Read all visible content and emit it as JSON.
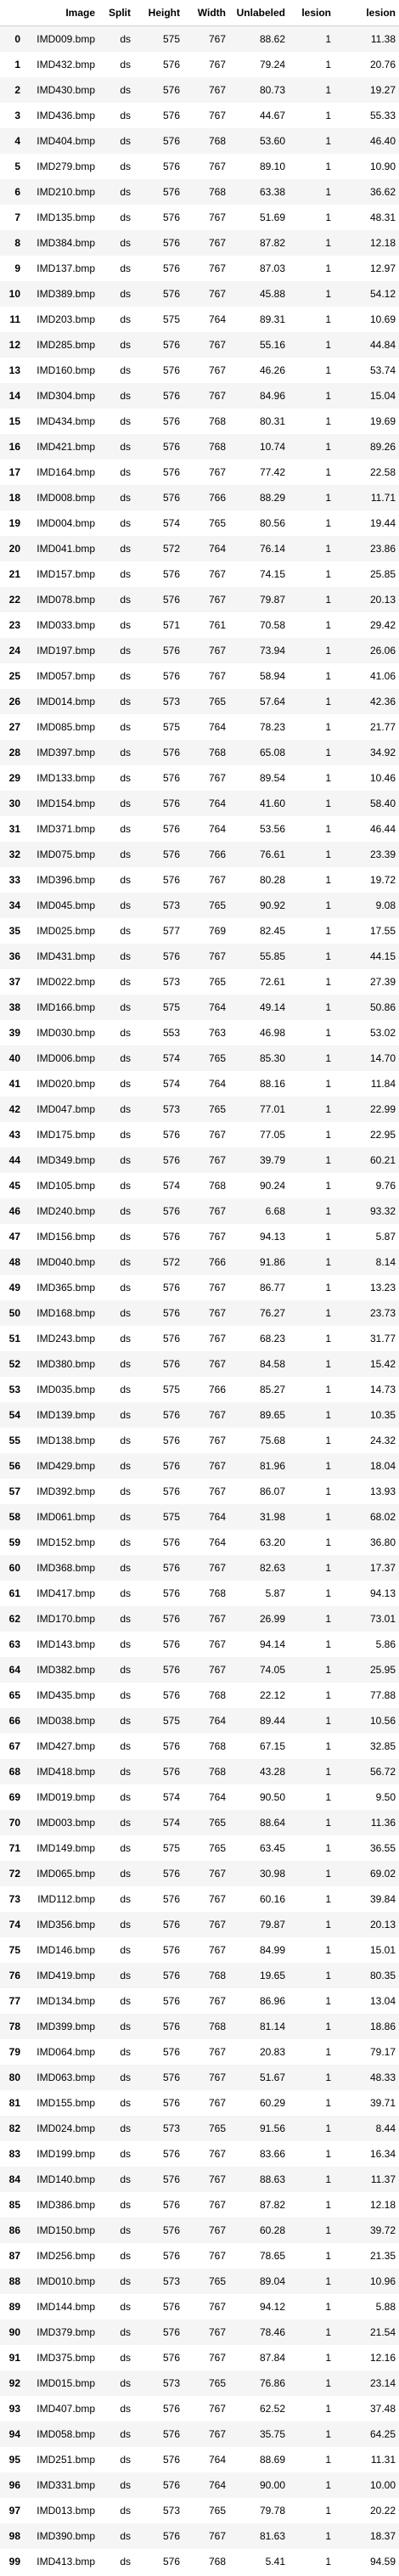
{
  "table": {
    "columns": [
      "",
      "Image",
      "Split",
      "Height",
      "Width",
      "Unlabeled",
      "lesion",
      "lesion"
    ],
    "rows": [
      [
        "0",
        "IMD009.bmp",
        "ds",
        "575",
        "767",
        "88.62",
        "1",
        "11.38"
      ],
      [
        "1",
        "IMD432.bmp",
        "ds",
        "576",
        "767",
        "79.24",
        "1",
        "20.76"
      ],
      [
        "2",
        "IMD430.bmp",
        "ds",
        "576",
        "767",
        "80.73",
        "1",
        "19.27"
      ],
      [
        "3",
        "IMD436.bmp",
        "ds",
        "576",
        "767",
        "44.67",
        "1",
        "55.33"
      ],
      [
        "4",
        "IMD404.bmp",
        "ds",
        "576",
        "768",
        "53.60",
        "1",
        "46.40"
      ],
      [
        "5",
        "IMD279.bmp",
        "ds",
        "576",
        "767",
        "89.10",
        "1",
        "10.90"
      ],
      [
        "6",
        "IMD210.bmp",
        "ds",
        "576",
        "768",
        "63.38",
        "1",
        "36.62"
      ],
      [
        "7",
        "IMD135.bmp",
        "ds",
        "576",
        "767",
        "51.69",
        "1",
        "48.31"
      ],
      [
        "8",
        "IMD384.bmp",
        "ds",
        "576",
        "767",
        "87.82",
        "1",
        "12.18"
      ],
      [
        "9",
        "IMD137.bmp",
        "ds",
        "576",
        "767",
        "87.03",
        "1",
        "12.97"
      ],
      [
        "10",
        "IMD389.bmp",
        "ds",
        "576",
        "767",
        "45.88",
        "1",
        "54.12"
      ],
      [
        "11",
        "IMD203.bmp",
        "ds",
        "575",
        "764",
        "89.31",
        "1",
        "10.69"
      ],
      [
        "12",
        "IMD285.bmp",
        "ds",
        "576",
        "767",
        "55.16",
        "1",
        "44.84"
      ],
      [
        "13",
        "IMD160.bmp",
        "ds",
        "576",
        "767",
        "46.26",
        "1",
        "53.74"
      ],
      [
        "14",
        "IMD304.bmp",
        "ds",
        "576",
        "767",
        "84.96",
        "1",
        "15.04"
      ],
      [
        "15",
        "IMD434.bmp",
        "ds",
        "576",
        "768",
        "80.31",
        "1",
        "19.69"
      ],
      [
        "16",
        "IMD421.bmp",
        "ds",
        "576",
        "768",
        "10.74",
        "1",
        "89.26"
      ],
      [
        "17",
        "IMD164.bmp",
        "ds",
        "576",
        "767",
        "77.42",
        "1",
        "22.58"
      ],
      [
        "18",
        "IMD008.bmp",
        "ds",
        "576",
        "766",
        "88.29",
        "1",
        "11.71"
      ],
      [
        "19",
        "IMD004.bmp",
        "ds",
        "574",
        "765",
        "80.56",
        "1",
        "19.44"
      ],
      [
        "20",
        "IMD041.bmp",
        "ds",
        "572",
        "764",
        "76.14",
        "1",
        "23.86"
      ],
      [
        "21",
        "IMD157.bmp",
        "ds",
        "576",
        "767",
        "74.15",
        "1",
        "25.85"
      ],
      [
        "22",
        "IMD078.bmp",
        "ds",
        "576",
        "767",
        "79.87",
        "1",
        "20.13"
      ],
      [
        "23",
        "IMD033.bmp",
        "ds",
        "571",
        "761",
        "70.58",
        "1",
        "29.42"
      ],
      [
        "24",
        "IMD197.bmp",
        "ds",
        "576",
        "767",
        "73.94",
        "1",
        "26.06"
      ],
      [
        "25",
        "IMD057.bmp",
        "ds",
        "576",
        "767",
        "58.94",
        "1",
        "41.06"
      ],
      [
        "26",
        "IMD014.bmp",
        "ds",
        "573",
        "765",
        "57.64",
        "1",
        "42.36"
      ],
      [
        "27",
        "IMD085.bmp",
        "ds",
        "575",
        "764",
        "78.23",
        "1",
        "21.77"
      ],
      [
        "28",
        "IMD397.bmp",
        "ds",
        "576",
        "768",
        "65.08",
        "1",
        "34.92"
      ],
      [
        "29",
        "IMD133.bmp",
        "ds",
        "576",
        "767",
        "89.54",
        "1",
        "10.46"
      ],
      [
        "30",
        "IMD154.bmp",
        "ds",
        "576",
        "764",
        "41.60",
        "1",
        "58.40"
      ],
      [
        "31",
        "IMD371.bmp",
        "ds",
        "576",
        "764",
        "53.56",
        "1",
        "46.44"
      ],
      [
        "32",
        "IMD075.bmp",
        "ds",
        "576",
        "766",
        "76.61",
        "1",
        "23.39"
      ],
      [
        "33",
        "IMD396.bmp",
        "ds",
        "576",
        "767",
        "80.28",
        "1",
        "19.72"
      ],
      [
        "34",
        "IMD045.bmp",
        "ds",
        "573",
        "765",
        "90.92",
        "1",
        "9.08"
      ],
      [
        "35",
        "IMD025.bmp",
        "ds",
        "577",
        "769",
        "82.45",
        "1",
        "17.55"
      ],
      [
        "36",
        "IMD431.bmp",
        "ds",
        "576",
        "767",
        "55.85",
        "1",
        "44.15"
      ],
      [
        "37",
        "IMD022.bmp",
        "ds",
        "573",
        "765",
        "72.61",
        "1",
        "27.39"
      ],
      [
        "38",
        "IMD166.bmp",
        "ds",
        "575",
        "764",
        "49.14",
        "1",
        "50.86"
      ],
      [
        "39",
        "IMD030.bmp",
        "ds",
        "553",
        "763",
        "46.98",
        "1",
        "53.02"
      ],
      [
        "40",
        "IMD006.bmp",
        "ds",
        "574",
        "765",
        "85.30",
        "1",
        "14.70"
      ],
      [
        "41",
        "IMD020.bmp",
        "ds",
        "574",
        "764",
        "88.16",
        "1",
        "11.84"
      ],
      [
        "42",
        "IMD047.bmp",
        "ds",
        "573",
        "765",
        "77.01",
        "1",
        "22.99"
      ],
      [
        "43",
        "IMD175.bmp",
        "ds",
        "576",
        "767",
        "77.05",
        "1",
        "22.95"
      ],
      [
        "44",
        "IMD349.bmp",
        "ds",
        "576",
        "767",
        "39.79",
        "1",
        "60.21"
      ],
      [
        "45",
        "IMD105.bmp",
        "ds",
        "574",
        "768",
        "90.24",
        "1",
        "9.76"
      ],
      [
        "46",
        "IMD240.bmp",
        "ds",
        "576",
        "767",
        "6.68",
        "1",
        "93.32"
      ],
      [
        "47",
        "IMD156.bmp",
        "ds",
        "576",
        "767",
        "94.13",
        "1",
        "5.87"
      ],
      [
        "48",
        "IMD040.bmp",
        "ds",
        "572",
        "766",
        "91.86",
        "1",
        "8.14"
      ],
      [
        "49",
        "IMD365.bmp",
        "ds",
        "576",
        "767",
        "86.77",
        "1",
        "13.23"
      ],
      [
        "50",
        "IMD168.bmp",
        "ds",
        "576",
        "767",
        "76.27",
        "1",
        "23.73"
      ],
      [
        "51",
        "IMD243.bmp",
        "ds",
        "576",
        "767",
        "68.23",
        "1",
        "31.77"
      ],
      [
        "52",
        "IMD380.bmp",
        "ds",
        "576",
        "767",
        "84.58",
        "1",
        "15.42"
      ],
      [
        "53",
        "IMD035.bmp",
        "ds",
        "575",
        "766",
        "85.27",
        "1",
        "14.73"
      ],
      [
        "54",
        "IMD139.bmp",
        "ds",
        "576",
        "767",
        "89.65",
        "1",
        "10.35"
      ],
      [
        "55",
        "IMD138.bmp",
        "ds",
        "576",
        "767",
        "75.68",
        "1",
        "24.32"
      ],
      [
        "56",
        "IMD429.bmp",
        "ds",
        "576",
        "767",
        "81.96",
        "1",
        "18.04"
      ],
      [
        "57",
        "IMD392.bmp",
        "ds",
        "576",
        "767",
        "86.07",
        "1",
        "13.93"
      ],
      [
        "58",
        "IMD061.bmp",
        "ds",
        "575",
        "764",
        "31.98",
        "1",
        "68.02"
      ],
      [
        "59",
        "IMD152.bmp",
        "ds",
        "576",
        "764",
        "63.20",
        "1",
        "36.80"
      ],
      [
        "60",
        "IMD368.bmp",
        "ds",
        "576",
        "767",
        "82.63",
        "1",
        "17.37"
      ],
      [
        "61",
        "IMD417.bmp",
        "ds",
        "576",
        "768",
        "5.87",
        "1",
        "94.13"
      ],
      [
        "62",
        "IMD170.bmp",
        "ds",
        "576",
        "767",
        "26.99",
        "1",
        "73.01"
      ],
      [
        "63",
        "IMD143.bmp",
        "ds",
        "576",
        "767",
        "94.14",
        "1",
        "5.86"
      ],
      [
        "64",
        "IMD382.bmp",
        "ds",
        "576",
        "767",
        "74.05",
        "1",
        "25.95"
      ],
      [
        "65",
        "IMD435.bmp",
        "ds",
        "576",
        "768",
        "22.12",
        "1",
        "77.88"
      ],
      [
        "66",
        "IMD038.bmp",
        "ds",
        "575",
        "764",
        "89.44",
        "1",
        "10.56"
      ],
      [
        "67",
        "IMD427.bmp",
        "ds",
        "576",
        "768",
        "67.15",
        "1",
        "32.85"
      ],
      [
        "68",
        "IMD418.bmp",
        "ds",
        "576",
        "768",
        "43.28",
        "1",
        "56.72"
      ],
      [
        "69",
        "IMD019.bmp",
        "ds",
        "574",
        "764",
        "90.50",
        "1",
        "9.50"
      ],
      [
        "70",
        "IMD003.bmp",
        "ds",
        "574",
        "765",
        "88.64",
        "1",
        "11.36"
      ],
      [
        "71",
        "IMD149.bmp",
        "ds",
        "575",
        "765",
        "63.45",
        "1",
        "36.55"
      ],
      [
        "72",
        "IMD065.bmp",
        "ds",
        "576",
        "767",
        "30.98",
        "1",
        "69.02"
      ],
      [
        "73",
        "IMD112.bmp",
        "ds",
        "576",
        "767",
        "60.16",
        "1",
        "39.84"
      ],
      [
        "74",
        "IMD356.bmp",
        "ds",
        "576",
        "767",
        "79.87",
        "1",
        "20.13"
      ],
      [
        "75",
        "IMD146.bmp",
        "ds",
        "576",
        "767",
        "84.99",
        "1",
        "15.01"
      ],
      [
        "76",
        "IMD419.bmp",
        "ds",
        "576",
        "768",
        "19.65",
        "1",
        "80.35"
      ],
      [
        "77",
        "IMD134.bmp",
        "ds",
        "576",
        "767",
        "86.96",
        "1",
        "13.04"
      ],
      [
        "78",
        "IMD399.bmp",
        "ds",
        "576",
        "768",
        "81.14",
        "1",
        "18.86"
      ],
      [
        "79",
        "IMD064.bmp",
        "ds",
        "576",
        "767",
        "20.83",
        "1",
        "79.17"
      ],
      [
        "80",
        "IMD063.bmp",
        "ds",
        "576",
        "767",
        "51.67",
        "1",
        "48.33"
      ],
      [
        "81",
        "IMD155.bmp",
        "ds",
        "576",
        "767",
        "60.29",
        "1",
        "39.71"
      ],
      [
        "82",
        "IMD024.bmp",
        "ds",
        "573",
        "765",
        "91.56",
        "1",
        "8.44"
      ],
      [
        "83",
        "IMD199.bmp",
        "ds",
        "576",
        "767",
        "83.66",
        "1",
        "16.34"
      ],
      [
        "84",
        "IMD140.bmp",
        "ds",
        "576",
        "767",
        "88.63",
        "1",
        "11.37"
      ],
      [
        "85",
        "IMD386.bmp",
        "ds",
        "576",
        "767",
        "87.82",
        "1",
        "12.18"
      ],
      [
        "86",
        "IMD150.bmp",
        "ds",
        "576",
        "767",
        "60.28",
        "1",
        "39.72"
      ],
      [
        "87",
        "IMD256.bmp",
        "ds",
        "576",
        "767",
        "78.65",
        "1",
        "21.35"
      ],
      [
        "88",
        "IMD010.bmp",
        "ds",
        "573",
        "765",
        "89.04",
        "1",
        "10.96"
      ],
      [
        "89",
        "IMD144.bmp",
        "ds",
        "576",
        "767",
        "94.12",
        "1",
        "5.88"
      ],
      [
        "90",
        "IMD379.bmp",
        "ds",
        "576",
        "767",
        "78.46",
        "1",
        "21.54"
      ],
      [
        "91",
        "IMD375.bmp",
        "ds",
        "576",
        "767",
        "87.84",
        "1",
        "12.16"
      ],
      [
        "92",
        "IMD015.bmp",
        "ds",
        "573",
        "765",
        "76.86",
        "1",
        "23.14"
      ],
      [
        "93",
        "IMD407.bmp",
        "ds",
        "576",
        "767",
        "62.52",
        "1",
        "37.48"
      ],
      [
        "94",
        "IMD058.bmp",
        "ds",
        "576",
        "767",
        "35.75",
        "1",
        "64.25"
      ],
      [
        "95",
        "IMD251.bmp",
        "ds",
        "576",
        "764",
        "88.69",
        "1",
        "11.31"
      ],
      [
        "96",
        "IMD331.bmp",
        "ds",
        "576",
        "764",
        "90.00",
        "1",
        "10.00"
      ],
      [
        "97",
        "IMD013.bmp",
        "ds",
        "573",
        "765",
        "79.78",
        "1",
        "20.22"
      ],
      [
        "98",
        "IMD390.bmp",
        "ds",
        "576",
        "767",
        "81.63",
        "1",
        "18.37"
      ],
      [
        "99",
        "IMD413.bmp",
        "ds",
        "576",
        "768",
        "5.41",
        "1",
        "94.59"
      ]
    ]
  }
}
